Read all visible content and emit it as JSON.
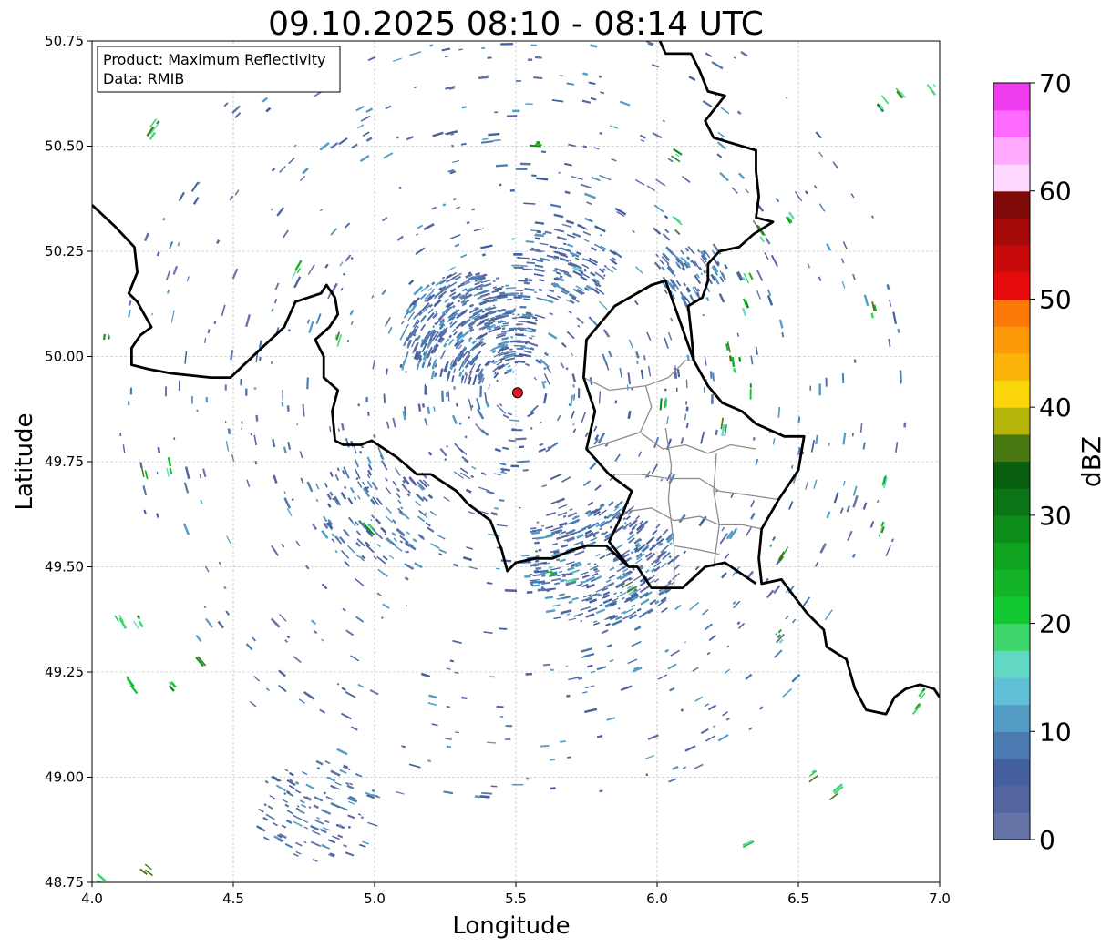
{
  "title": "09.10.2025 08:10 - 08:14 UTC",
  "info_box": {
    "product": "Product: Maximum Reflectivity",
    "data": "Data: RMIB"
  },
  "axes": {
    "xlabel": "Longitude",
    "ylabel": "Latitude",
    "xlim": [
      4.0,
      7.0
    ],
    "ylim": [
      48.75,
      50.75
    ],
    "xticks": [
      4.0,
      4.5,
      5.0,
      5.5,
      6.0,
      6.5,
      7.0
    ],
    "xtick_labels": [
      "4.0",
      "4.5",
      "5.0",
      "5.5",
      "6.0",
      "6.5",
      "7.0"
    ],
    "yticks": [
      48.75,
      49.0,
      49.25,
      49.5,
      49.75,
      50.0,
      50.25,
      50.5,
      50.75
    ],
    "ytick_labels": [
      "48.75",
      "49.00",
      "49.25",
      "49.50",
      "49.75",
      "50.00",
      "50.25",
      "50.50",
      "50.75"
    ],
    "grid": true
  },
  "radar_site": {
    "lon": 5.506,
    "lat": 49.914,
    "color": "#e8141a"
  },
  "colorbar": {
    "label": "dBZ",
    "range": [
      0,
      70
    ],
    "ticks": [
      0,
      10,
      20,
      30,
      40,
      50,
      60,
      70
    ],
    "tick_labels": [
      "0",
      "10",
      "20",
      "30",
      "40",
      "50",
      "60",
      "70"
    ],
    "colors": [
      "#6574a6",
      "#5465a0",
      "#44609e",
      "#4b7bb0",
      "#539cc4",
      "#62bfd8",
      "#62d8c4",
      "#3ed66c",
      "#14c832",
      "#14b428",
      "#10a420",
      "#0c8c18",
      "#0a7416",
      "#065e0e",
      "#487812",
      "#b4b40a",
      "#fad60a",
      "#fcb40a",
      "#fc9a0a",
      "#fc7a0a",
      "#e60a0a",
      "#c80a0a",
      "#a50a0a",
      "#7e0a0a",
      "#ffd8ff",
      "#ffaaff",
      "#ff6aff",
      "#ee3cee"
    ]
  },
  "borders": {
    "country": [
      [
        [
          6.01,
          50.75
        ],
        [
          6.03,
          50.72
        ],
        [
          6.12,
          50.72
        ],
        [
          6.15,
          50.68
        ],
        [
          6.18,
          50.63
        ],
        [
          6.24,
          50.62
        ],
        [
          6.17,
          50.56
        ],
        [
          6.2,
          50.52
        ],
        [
          6.35,
          50.49
        ],
        [
          6.35,
          50.44
        ],
        [
          6.36,
          50.38
        ],
        [
          6.35,
          50.33
        ],
        [
          6.41,
          50.32
        ],
        [
          6.34,
          50.29
        ],
        [
          6.29,
          50.26
        ],
        [
          6.22,
          50.25
        ],
        [
          6.18,
          50.22
        ],
        [
          6.18,
          50.18
        ],
        [
          6.16,
          50.14
        ],
        [
          6.11,
          50.12
        ],
        [
          6.12,
          50.06
        ],
        [
          6.13,
          49.99
        ],
        [
          6.18,
          49.93
        ],
        [
          6.23,
          49.89
        ],
        [
          6.3,
          49.87
        ],
        [
          6.35,
          49.84
        ],
        [
          6.45,
          49.81
        ],
        [
          6.52,
          49.81
        ],
        [
          6.5,
          49.73
        ],
        [
          6.43,
          49.66
        ],
        [
          6.37,
          49.59
        ],
        [
          6.36,
          49.52
        ],
        [
          6.37,
          49.46
        ],
        [
          6.44,
          49.47
        ],
        [
          6.53,
          49.39
        ],
        [
          6.59,
          49.35
        ],
        [
          6.6,
          49.31
        ],
        [
          6.67,
          49.28
        ],
        [
          6.7,
          49.21
        ],
        [
          6.74,
          49.16
        ],
        [
          6.81,
          49.15
        ],
        [
          6.84,
          49.19
        ],
        [
          6.88,
          49.21
        ],
        [
          6.93,
          49.22
        ],
        [
          6.98,
          49.21
        ],
        [
          7.0,
          49.19
        ]
      ],
      [
        [
          6.35,
          49.46
        ],
        [
          6.24,
          49.51
        ],
        [
          6.17,
          49.5
        ],
        [
          6.09,
          49.45
        ],
        [
          6.03,
          49.45
        ],
        [
          5.98,
          49.45
        ],
        [
          5.93,
          49.5
        ],
        [
          5.9,
          49.5
        ],
        [
          5.82,
          49.55
        ],
        [
          5.75,
          49.55
        ],
        [
          5.7,
          49.54
        ],
        [
          5.63,
          49.52
        ],
        [
          5.57,
          49.52
        ],
        [
          5.5,
          49.51
        ],
        [
          5.47,
          49.49
        ],
        [
          5.45,
          49.54
        ],
        [
          5.41,
          49.61
        ],
        [
          5.33,
          49.65
        ],
        [
          5.29,
          49.68
        ],
        [
          5.2,
          49.72
        ],
        [
          5.15,
          49.72
        ],
        [
          5.08,
          49.76
        ],
        [
          4.99,
          49.8
        ],
        [
          4.95,
          49.79
        ],
        [
          4.89,
          49.79
        ],
        [
          4.86,
          49.8
        ],
        [
          4.85,
          49.87
        ],
        [
          4.87,
          49.92
        ],
        [
          4.82,
          49.95
        ],
        [
          4.82,
          50.0
        ],
        [
          4.79,
          50.04
        ],
        [
          4.84,
          50.07
        ],
        [
          4.87,
          50.1
        ],
        [
          4.86,
          50.14
        ],
        [
          4.83,
          50.17
        ],
        [
          4.81,
          50.15
        ],
        [
          4.72,
          50.13
        ],
        [
          4.68,
          50.07
        ],
        [
          4.6,
          50.02
        ],
        [
          4.49,
          49.95
        ],
        [
          4.42,
          49.95
        ],
        [
          4.28,
          49.96
        ],
        [
          4.2,
          49.97
        ],
        [
          4.14,
          49.98
        ],
        [
          4.14,
          50.02
        ],
        [
          4.17,
          50.05
        ],
        [
          4.21,
          50.07
        ],
        [
          4.16,
          50.13
        ],
        [
          4.13,
          50.15
        ],
        [
          4.16,
          50.2
        ],
        [
          4.15,
          50.26
        ],
        [
          4.08,
          50.31
        ],
        [
          4.0,
          50.36
        ]
      ]
    ],
    "luxembourg": [
      [
        6.13,
        49.99
      ],
      [
        6.03,
        50.18
      ],
      [
        5.98,
        50.17
      ],
      [
        5.85,
        50.12
      ],
      [
        5.75,
        50.04
      ],
      [
        5.74,
        49.95
      ],
      [
        5.78,
        49.87
      ],
      [
        5.75,
        49.78
      ],
      [
        5.83,
        49.72
      ],
      [
        5.91,
        49.68
      ],
      [
        5.88,
        49.63
      ],
      [
        5.83,
        49.56
      ],
      [
        5.9,
        49.5
      ]
    ],
    "provinces": [
      [
        [
          5.74,
          49.95
        ],
        [
          5.83,
          49.92
        ],
        [
          5.96,
          49.93
        ],
        [
          6.04,
          49.95
        ],
        [
          6.1,
          49.99
        ],
        [
          6.13,
          49.99
        ]
      ],
      [
        [
          5.75,
          49.78
        ],
        [
          5.85,
          49.8
        ],
        [
          5.94,
          49.82
        ],
        [
          6.02,
          49.78
        ],
        [
          6.1,
          49.79
        ],
        [
          6.18,
          49.77
        ],
        [
          6.26,
          49.79
        ],
        [
          6.35,
          49.78
        ]
      ],
      [
        [
          5.83,
          49.72
        ],
        [
          5.94,
          49.72
        ],
        [
          6.04,
          49.71
        ],
        [
          6.15,
          49.71
        ],
        [
          6.22,
          49.68
        ],
        [
          6.33,
          49.67
        ],
        [
          6.43,
          49.66
        ]
      ],
      [
        [
          5.88,
          49.63
        ],
        [
          5.98,
          49.64
        ],
        [
          6.06,
          49.61
        ],
        [
          6.15,
          49.62
        ],
        [
          6.22,
          49.6
        ],
        [
          6.3,
          49.6
        ],
        [
          6.37,
          49.59
        ]
      ],
      [
        [
          6.03,
          49.83
        ],
        [
          6.05,
          49.74
        ],
        [
          6.04,
          49.66
        ],
        [
          6.06,
          49.55
        ],
        [
          6.06,
          49.45
        ]
      ],
      [
        [
          6.21,
          49.77
        ],
        [
          6.2,
          49.68
        ],
        [
          6.22,
          49.6
        ],
        [
          6.2,
          49.5
        ]
      ],
      [
        [
          5.94,
          49.82
        ],
        [
          5.98,
          49.88
        ],
        [
          5.96,
          49.93
        ]
      ],
      [
        [
          6.06,
          49.55
        ],
        [
          6.15,
          49.54
        ],
        [
          6.22,
          49.53
        ]
      ]
    ]
  }
}
